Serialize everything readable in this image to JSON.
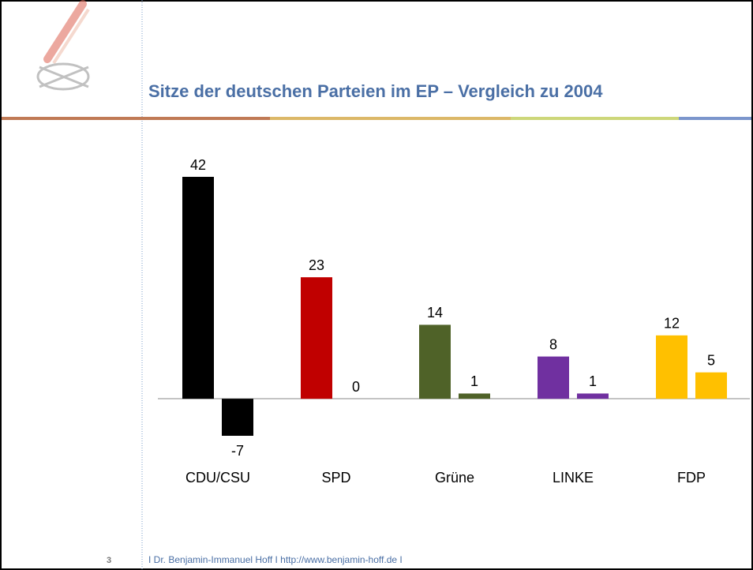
{
  "chart_data": {
    "type": "bar",
    "title": "Sitze der deutschen Parteien im EP – Vergleich zu 2004",
    "categories": [
      "CDU/CSU",
      "SPD",
      "Grüne",
      "LINKE",
      "FDP"
    ],
    "colors": [
      "#000000",
      "#c00000",
      "#4f6228",
      "#7030a0",
      "#ffc000"
    ],
    "series": [
      {
        "values": [
          42,
          23,
          14,
          8,
          12
        ]
      },
      {
        "values": [
          -7,
          0,
          1,
          1,
          5
        ]
      }
    ]
  },
  "footer": {
    "page_number": "3",
    "text": "I Dr. Benjamin-Immanuel Hoff I http://www.benjamin-hoff.de I"
  }
}
